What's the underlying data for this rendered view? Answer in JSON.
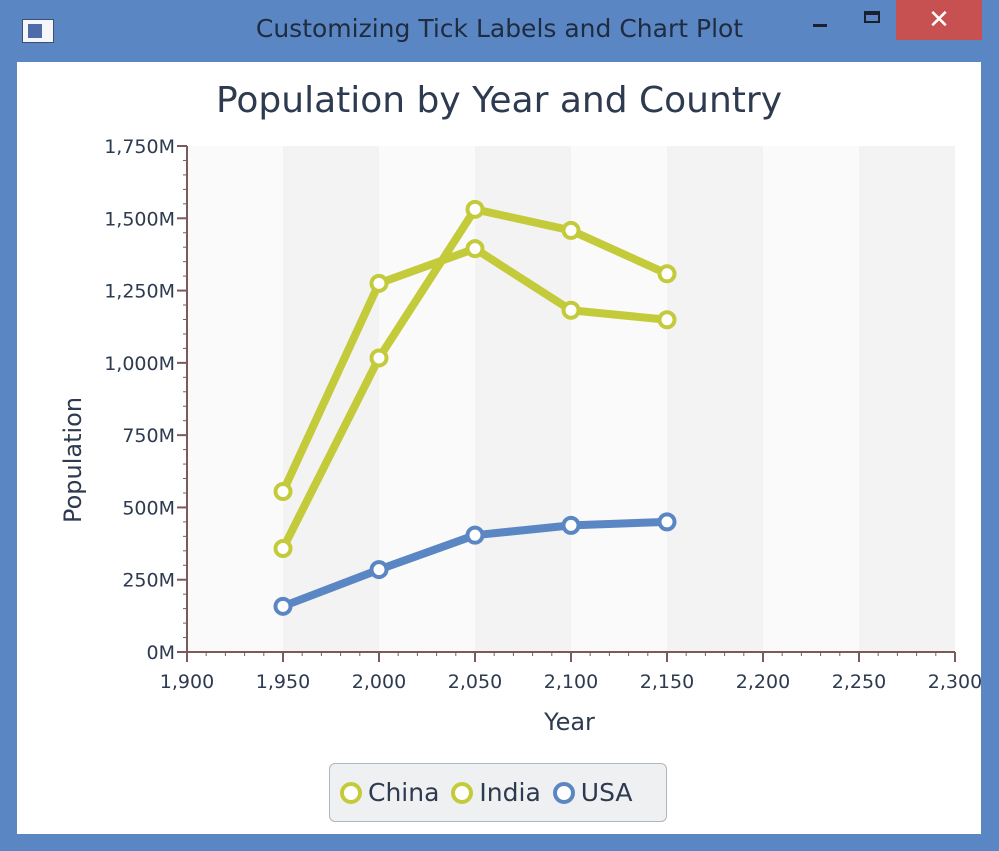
{
  "window": {
    "title": "Customizing Tick Labels and Chart Plot",
    "minimize_label": "–",
    "maximize_label": "□",
    "close_label": "✕",
    "icon": "app-window-icon"
  },
  "colors": {
    "titlebar": "#5b86c4",
    "china": "#c4cb3a",
    "india": "#c4cb3a",
    "usa": "#5b86c4",
    "plot_band": "#f3f3f3",
    "close": "#c75050"
  },
  "chart_data": {
    "type": "line",
    "title": "Population by Year and Country",
    "xlabel": "Year",
    "ylabel": "Population",
    "xlim": [
      1900,
      2300
    ],
    "ylim": [
      0,
      1750
    ],
    "x_ticks": [
      "1,900",
      "1,950",
      "2,000",
      "2,050",
      "2,100",
      "2,150",
      "2,200",
      "2,250",
      "2,300"
    ],
    "y_ticks": [
      "0M",
      "250M",
      "500M",
      "750M",
      "1,000M",
      "1,250M",
      "1,500M",
      "1,750M"
    ],
    "grid": false,
    "legend_position": "bottom",
    "series": [
      {
        "name": "China",
        "color": "#c4cb3a",
        "x": [
          1950,
          2000,
          2050,
          2100,
          2150
        ],
        "values": [
          555,
          1275,
          1395,
          1182,
          1149
        ]
      },
      {
        "name": "India",
        "color": "#c4cb3a",
        "x": [
          1950,
          2000,
          2050,
          2100,
          2150
        ],
        "values": [
          358,
          1017,
          1531,
          1458,
          1308
        ]
      },
      {
        "name": "USA",
        "color": "#5b86c4",
        "x": [
          1950,
          2000,
          2050,
          2100,
          2150
        ],
        "values": [
          158,
          285,
          404,
          438,
          450
        ]
      }
    ]
  }
}
